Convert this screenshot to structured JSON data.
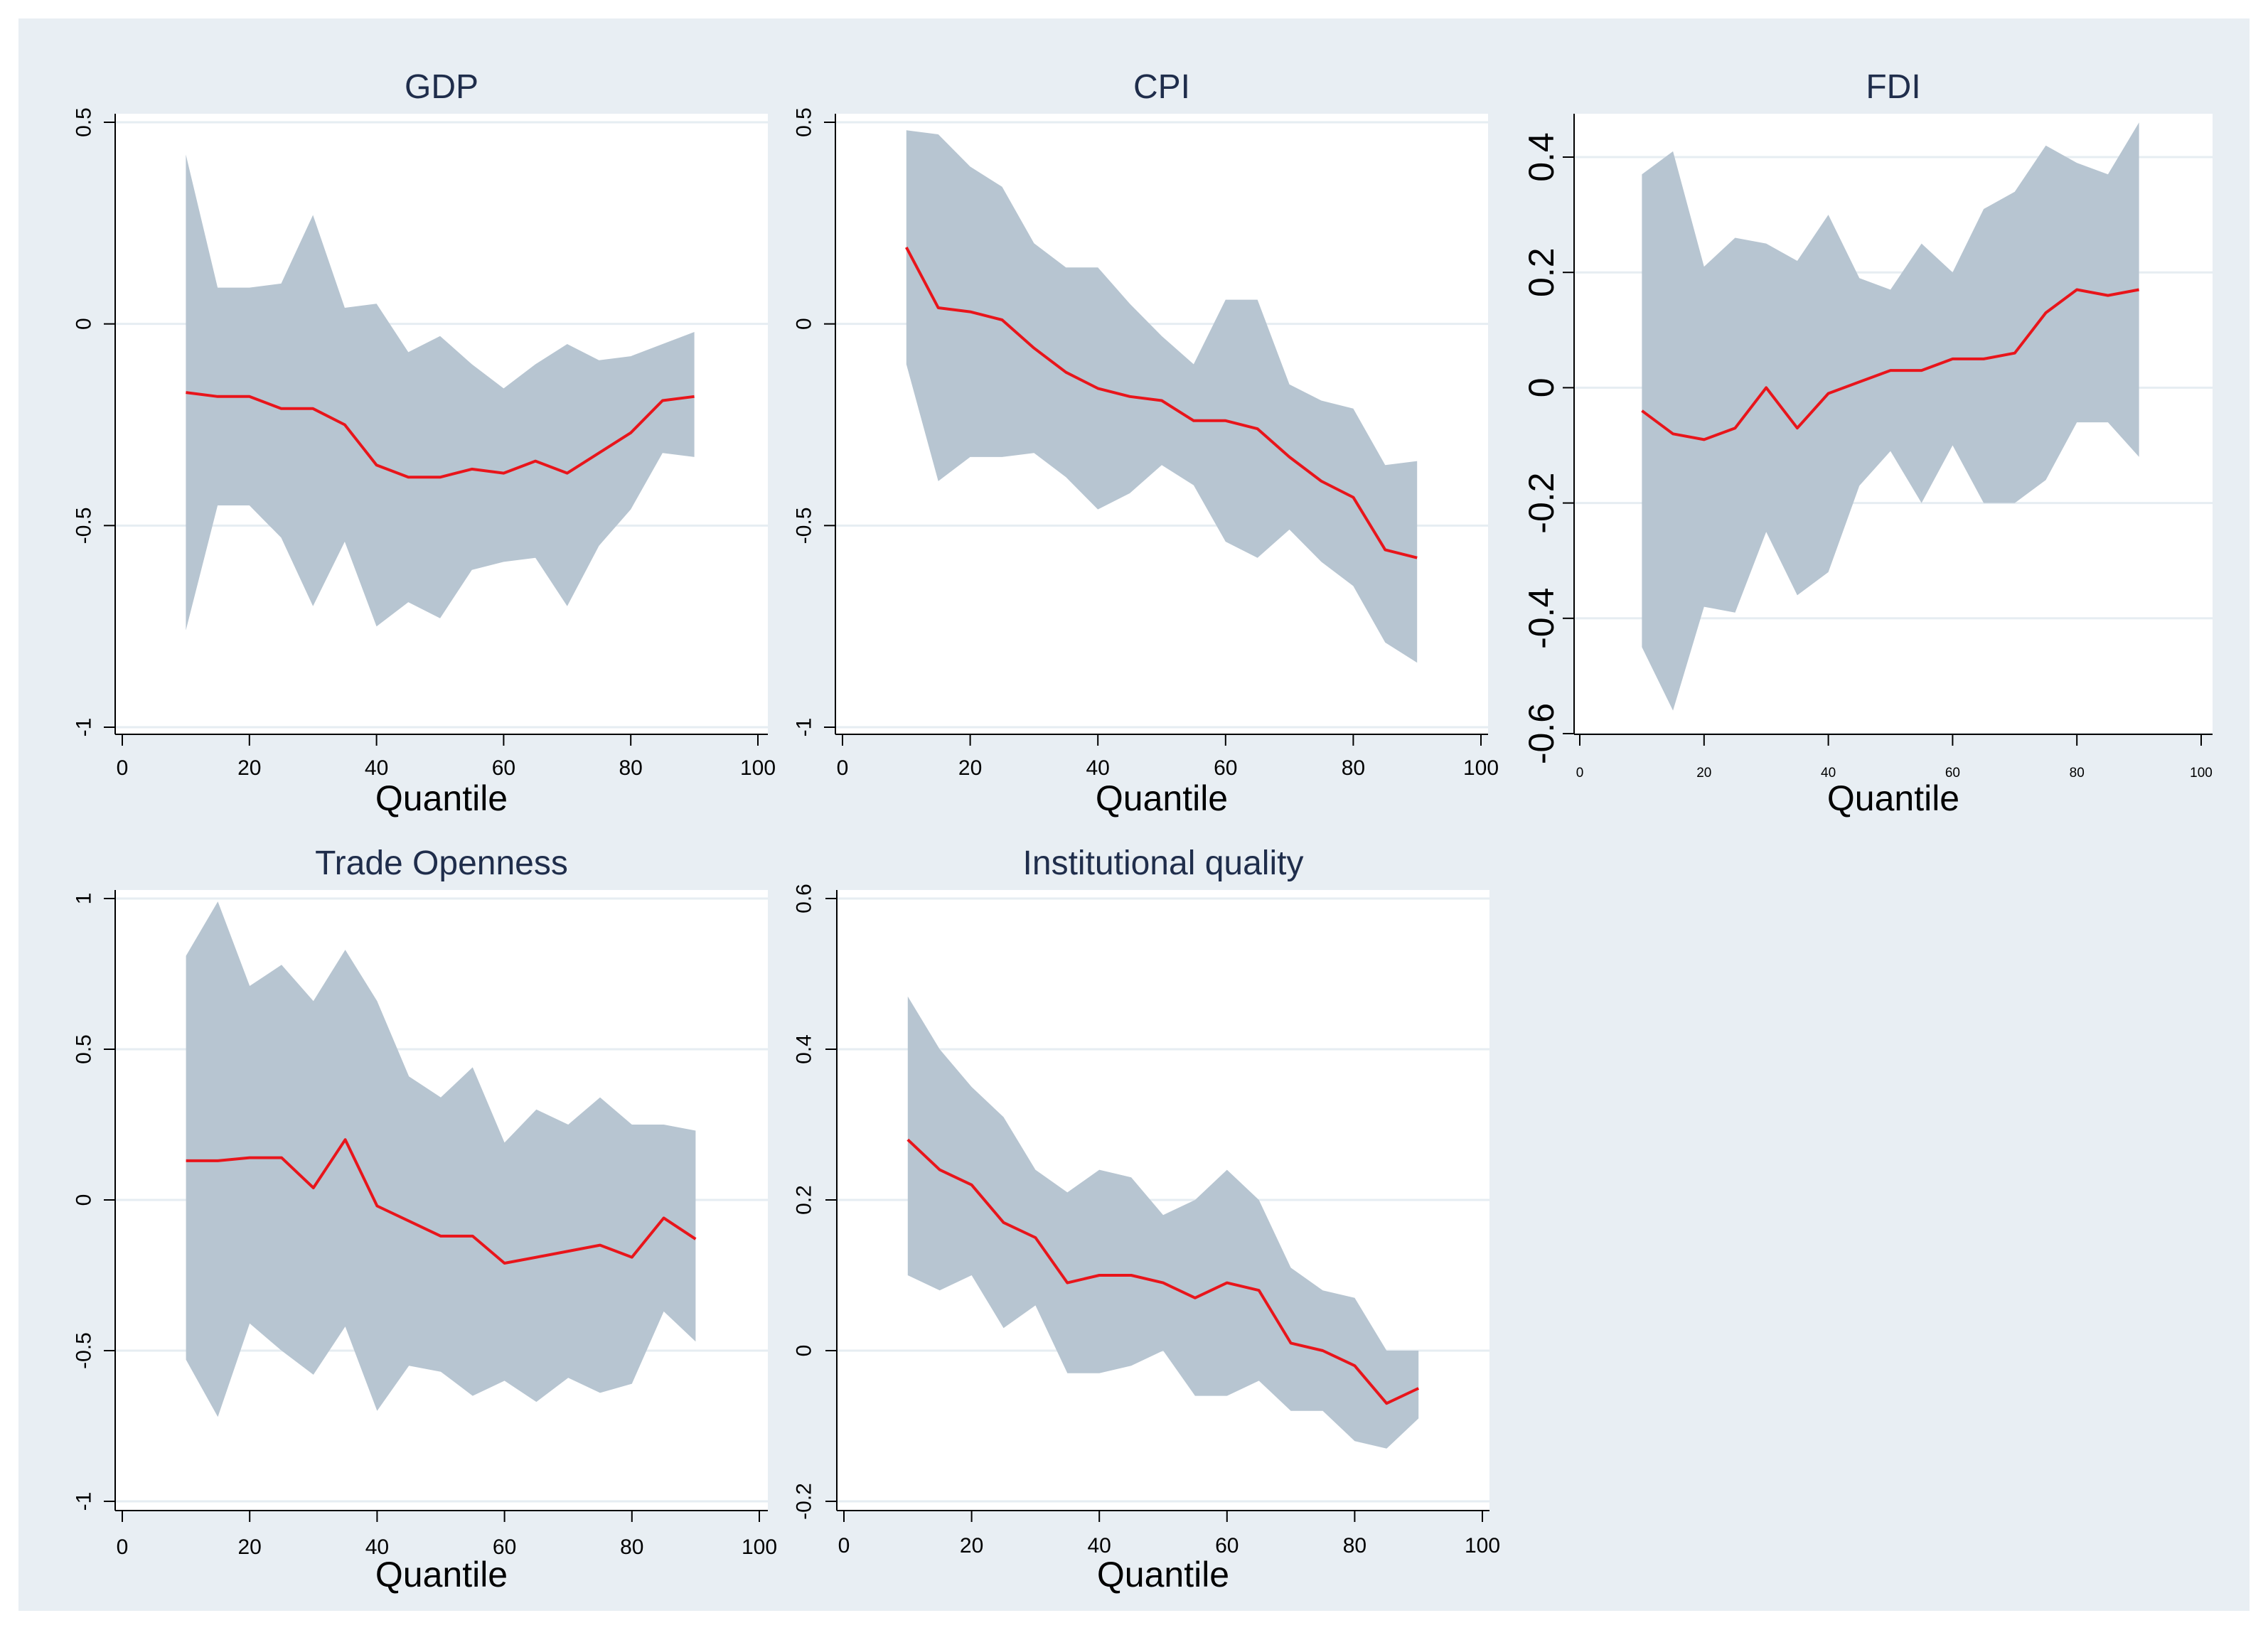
{
  "colors": {
    "outer_background": "#e8eef3",
    "plot_background": "#ffffff",
    "band": "#b7c5d1",
    "line": "#e8151b",
    "axis": "#000000",
    "grid": "#e6edf2",
    "title": "#1f2d4b"
  },
  "chart_data": [
    {
      "type": "area",
      "title": "GDP",
      "xlabel": "Quantile",
      "ylabel": "",
      "xlim": [
        0,
        100
      ],
      "ylim": [
        -1,
        0.5
      ],
      "xticks": [
        0,
        20,
        40,
        60,
        80,
        100
      ],
      "xtick_labels": [
        "0",
        "20",
        "40",
        "60",
        "80",
        "100"
      ],
      "yticks": [
        -1,
        -0.5,
        0,
        0.5
      ],
      "ytick_labels": [
        "-1",
        "-0.5",
        "0",
        "0.5"
      ],
      "grid": true,
      "x": [
        10,
        15,
        20,
        25,
        30,
        35,
        40,
        45,
        50,
        55,
        60,
        65,
        70,
        75,
        80,
        85,
        90
      ],
      "series": [
        {
          "name": "estimate",
          "values": [
            -0.17,
            -0.18,
            -0.18,
            -0.21,
            -0.21,
            -0.25,
            -0.35,
            -0.38,
            -0.38,
            -0.36,
            -0.37,
            -0.34,
            -0.37,
            -0.32,
            -0.27,
            -0.19,
            -0.18
          ]
        },
        {
          "name": "upper",
          "values": [
            0.42,
            0.09,
            0.09,
            0.1,
            0.27,
            0.04,
            0.05,
            -0.07,
            -0.03,
            -0.1,
            -0.16,
            -0.1,
            -0.05,
            -0.09,
            -0.08,
            -0.05,
            -0.02
          ]
        },
        {
          "name": "lower",
          "values": [
            -0.76,
            -0.45,
            -0.45,
            -0.53,
            -0.7,
            -0.54,
            -0.75,
            -0.69,
            -0.73,
            -0.61,
            -0.59,
            -0.58,
            -0.7,
            -0.55,
            -0.46,
            -0.32,
            -0.33
          ]
        }
      ]
    },
    {
      "type": "area",
      "title": "CPI",
      "xlabel": "Quantile",
      "ylabel": "",
      "xlim": [
        0,
        100
      ],
      "ylim": [
        -1,
        0.5
      ],
      "xticks": [
        0,
        20,
        40,
        60,
        80,
        100
      ],
      "xtick_labels": [
        "0",
        "20",
        "40",
        "60",
        "80",
        "100"
      ],
      "yticks": [
        -1,
        -0.5,
        0,
        0.5
      ],
      "ytick_labels": [
        "-1",
        "-0.5",
        "0",
        "0.5"
      ],
      "grid": true,
      "x": [
        10,
        15,
        20,
        25,
        30,
        35,
        40,
        45,
        50,
        55,
        60,
        65,
        70,
        75,
        80,
        85,
        90
      ],
      "series": [
        {
          "name": "estimate",
          "values": [
            0.19,
            0.04,
            0.03,
            0.01,
            -0.06,
            -0.12,
            -0.16,
            -0.18,
            -0.19,
            -0.24,
            -0.24,
            -0.26,
            -0.33,
            -0.39,
            -0.43,
            -0.56,
            -0.58
          ]
        },
        {
          "name": "upper",
          "values": [
            0.48,
            0.47,
            0.39,
            0.34,
            0.2,
            0.14,
            0.14,
            0.05,
            -0.03,
            -0.1,
            0.06,
            0.06,
            -0.15,
            -0.19,
            -0.21,
            -0.35,
            -0.34
          ]
        },
        {
          "name": "lower",
          "values": [
            -0.1,
            -0.39,
            -0.33,
            -0.33,
            -0.32,
            -0.38,
            -0.46,
            -0.42,
            -0.35,
            -0.4,
            -0.54,
            -0.58,
            -0.51,
            -0.59,
            -0.65,
            -0.79,
            -0.84
          ]
        }
      ]
    },
    {
      "type": "area",
      "title": "FDI",
      "xlabel": "Quantile",
      "ylabel": "",
      "xlim": [
        0,
        100
      ],
      "ylim": [
        -0.6,
        0.47
      ],
      "xticks": [
        0,
        20,
        40,
        60,
        80,
        100
      ],
      "xtick_labels": [
        "0",
        "20",
        "40",
        "60",
        "80",
        "100"
      ],
      "yticks": [
        -0.6,
        -0.4,
        -0.2,
        0,
        0.2,
        0.4
      ],
      "ytick_labels": [
        "-0.6",
        "-0.4",
        "-0.2",
        "0",
        "0.2",
        "0.4"
      ],
      "grid": true,
      "x": [
        10,
        15,
        20,
        25,
        30,
        35,
        40,
        45,
        50,
        55,
        60,
        65,
        70,
        75,
        80,
        85,
        90
      ],
      "series": [
        {
          "name": "estimate",
          "values": [
            -0.04,
            -0.08,
            -0.09,
            -0.07,
            0.0,
            -0.07,
            -0.01,
            0.01,
            0.03,
            0.03,
            0.05,
            0.05,
            0.06,
            0.13,
            0.17,
            0.16,
            0.17
          ]
        },
        {
          "name": "upper",
          "values": [
            0.37,
            0.41,
            0.21,
            0.26,
            0.25,
            0.22,
            0.3,
            0.19,
            0.17,
            0.25,
            0.2,
            0.31,
            0.34,
            0.42,
            0.39,
            0.37,
            0.46
          ]
        },
        {
          "name": "lower",
          "values": [
            -0.45,
            -0.56,
            -0.38,
            -0.39,
            -0.25,
            -0.36,
            -0.32,
            -0.17,
            -0.11,
            -0.2,
            -0.1,
            -0.2,
            -0.2,
            -0.16,
            -0.06,
            -0.06,
            -0.12
          ]
        }
      ]
    },
    {
      "type": "area",
      "title": "Trade Openness",
      "xlabel": "Quantile",
      "ylabel": "",
      "xlim": [
        0,
        100
      ],
      "ylim": [
        -1,
        1
      ],
      "xticks": [
        0,
        20,
        40,
        60,
        80,
        100
      ],
      "xtick_labels": [
        "0",
        "20",
        "40",
        "60",
        "80",
        "100"
      ],
      "yticks": [
        -1,
        -0.5,
        0,
        0.5,
        1
      ],
      "ytick_labels": [
        "-1",
        "-0.5",
        "0",
        "0.5",
        "1"
      ],
      "grid": true,
      "x": [
        10,
        15,
        20,
        25,
        30,
        35,
        40,
        45,
        50,
        55,
        60,
        65,
        70,
        75,
        80,
        85,
        90
      ],
      "series": [
        {
          "name": "estimate",
          "values": [
            0.13,
            0.13,
            0.14,
            0.14,
            0.04,
            0.2,
            -0.02,
            -0.07,
            -0.12,
            -0.12,
            -0.21,
            -0.19,
            -0.17,
            -0.15,
            -0.19,
            -0.06,
            -0.13
          ]
        },
        {
          "name": "upper",
          "values": [
            0.81,
            0.99,
            0.71,
            0.78,
            0.66,
            0.83,
            0.66,
            0.41,
            0.34,
            0.44,
            0.19,
            0.3,
            0.25,
            0.34,
            0.25,
            0.25,
            0.23
          ]
        },
        {
          "name": "lower",
          "values": [
            -0.53,
            -0.72,
            -0.41,
            -0.5,
            -0.58,
            -0.42,
            -0.7,
            -0.55,
            -0.57,
            -0.65,
            -0.6,
            -0.67,
            -0.59,
            -0.64,
            -0.61,
            -0.37,
            -0.47
          ]
        }
      ]
    },
    {
      "type": "area",
      "title": "Institutional quality",
      "xlabel": "Quantile",
      "ylabel": "",
      "xlim": [
        0,
        100
      ],
      "ylim": [
        -0.2,
        0.6
      ],
      "xticks": [
        0,
        20,
        40,
        60,
        80,
        100
      ],
      "xtick_labels": [
        "0",
        "20",
        "40",
        "60",
        "80",
        "100"
      ],
      "yticks": [
        -0.2,
        0,
        0.2,
        0.4,
        0.6
      ],
      "ytick_labels": [
        "-0.2",
        "0",
        "0.2",
        "0.4",
        "0.6"
      ],
      "grid": true,
      "x": [
        10,
        15,
        20,
        25,
        30,
        35,
        40,
        45,
        50,
        55,
        60,
        65,
        70,
        75,
        80,
        85,
        90
      ],
      "series": [
        {
          "name": "estimate",
          "values": [
            0.28,
            0.24,
            0.22,
            0.17,
            0.15,
            0.09,
            0.1,
            0.1,
            0.09,
            0.07,
            0.09,
            0.08,
            0.01,
            0.0,
            -0.02,
            -0.07,
            -0.05
          ]
        },
        {
          "name": "upper",
          "values": [
            0.47,
            0.4,
            0.35,
            0.31,
            0.24,
            0.21,
            0.24,
            0.23,
            0.18,
            0.2,
            0.24,
            0.2,
            0.11,
            0.08,
            0.07,
            0.0,
            0.0
          ]
        },
        {
          "name": "lower",
          "values": [
            0.1,
            0.08,
            0.1,
            0.03,
            0.06,
            -0.03,
            -0.03,
            -0.02,
            0.0,
            -0.06,
            -0.06,
            -0.04,
            -0.08,
            -0.08,
            -0.12,
            -0.13,
            -0.09
          ]
        }
      ]
    }
  ]
}
